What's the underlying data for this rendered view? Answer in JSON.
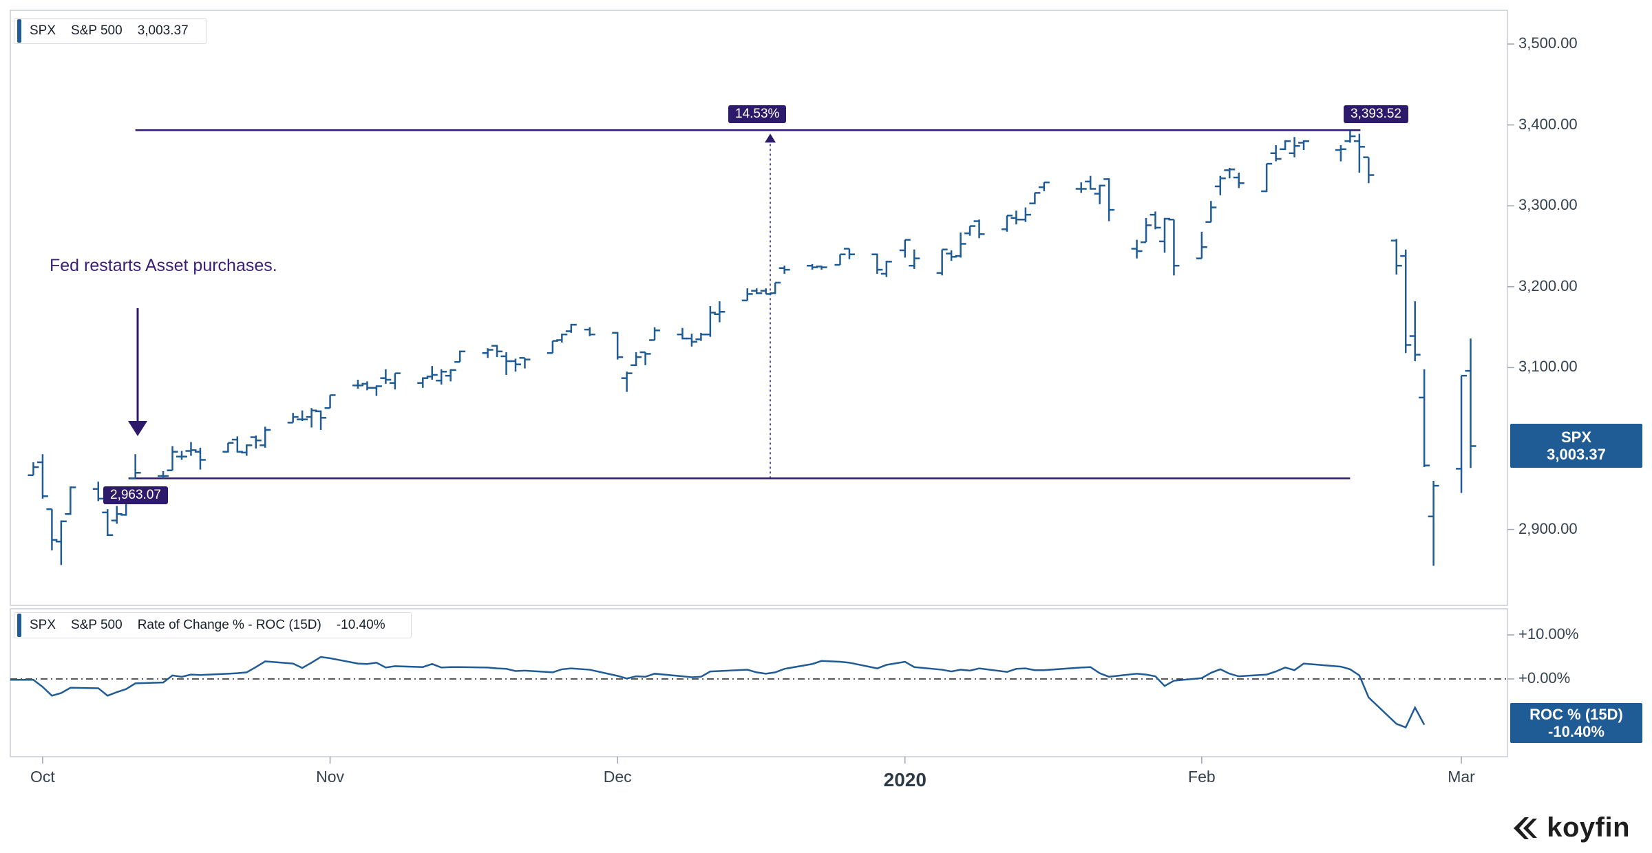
{
  "main_legend": {
    "ticker": "SPX",
    "name": "S&P 500",
    "value": "3,003.37"
  },
  "roc_legend": {
    "ticker": "SPX",
    "name": "S&P 500",
    "indicator": "Rate of Change % - ROC (15D)",
    "value": "-10.40%"
  },
  "annotation": "Fed restarts Asset purchases.",
  "tags": {
    "low_level": "2,963.07",
    "high_level": "3,393.52",
    "change": "14.53%"
  },
  "last_price_badge": {
    "ticker": "SPX",
    "value": "3,003.37"
  },
  "roc_badge": {
    "label": "ROC % (15D)",
    "value": "-10.40%"
  },
  "brand": "koyfin",
  "colors": {
    "bar": "#1f5b94",
    "accent": "#2e1a6b",
    "badge": "#1f5b94"
  },
  "chart_data": [
    {
      "type": "ohlc",
      "series_name": "SPX",
      "ylim": [
        2820,
        3530
      ],
      "y_ticks": [
        "3,500.00",
        "3,400.00",
        "3,300.00",
        "3,200.00",
        "3,100.00",
        "2,900.00"
      ],
      "y_tick_values": [
        3500,
        3400,
        3300,
        3200,
        3100,
        2900
      ],
      "x_ticks": [
        "Oct",
        "Nov",
        "Dec",
        "2020",
        "Feb",
        "Mar"
      ],
      "x_tick_dates": [
        "2019-10-01",
        "2019-11-01",
        "2019-12-02",
        "2020-01-02",
        "2020-02-03",
        "2020-03-02"
      ],
      "levels": {
        "low": 2963.07,
        "high": 3393.52,
        "low_date": "2019-10-11",
        "high_date": "2020-02-19"
      },
      "bars": [
        [
          "2019-09-30",
          2967,
          2983,
          2967,
          2977
        ],
        [
          "2019-10-01",
          2983,
          2993,
          2938,
          2941
        ],
        [
          "2019-10-02",
          2925,
          2925,
          2874,
          2887
        ],
        [
          "2019-10-03",
          2885,
          2911,
          2856,
          2910
        ],
        [
          "2019-10-04",
          2919,
          2953,
          2918,
          2952
        ],
        [
          "2019-10-07",
          2950,
          2959,
          2935,
          2938
        ],
        [
          "2019-10-08",
          2921,
          2925,
          2892,
          2893
        ],
        [
          "2019-10-09",
          2911,
          2929,
          2907,
          2919
        ],
        [
          "2019-10-10",
          2918,
          2948,
          2917,
          2938
        ],
        [
          "2019-10-11",
          2963,
          2993,
          2963,
          2970
        ],
        [
          "2019-10-14",
          2966,
          2972,
          2963,
          2966
        ],
        [
          "2019-10-15",
          2973,
          3003,
          2973,
          2996
        ],
        [
          "2019-10-16",
          2990,
          2997,
          2986,
          2990
        ],
        [
          "2019-10-17",
          2997,
          3008,
          2991,
          2998
        ],
        [
          "2019-10-18",
          2996,
          3001,
          2974,
          2986
        ],
        [
          "2019-10-21",
          2996,
          3007,
          2995,
          3007
        ],
        [
          "2019-10-22",
          3011,
          3015,
          2995,
          2996
        ],
        [
          "2019-10-23",
          2995,
          3005,
          2991,
          3004
        ],
        [
          "2019-10-24",
          3014,
          3016,
          3000,
          3010
        ],
        [
          "2019-10-25",
          3004,
          3027,
          3001,
          3023
        ],
        [
          "2019-10-28",
          3032,
          3044,
          3032,
          3039
        ],
        [
          "2019-10-29",
          3036,
          3047,
          3034,
          3036
        ],
        [
          "2019-10-30",
          3039,
          3050,
          3026,
          3047
        ],
        [
          "2019-10-31",
          3046,
          3047,
          3023,
          3038
        ],
        [
          "2019-11-01",
          3050,
          3066,
          3050,
          3066
        ],
        [
          "2019-11-04",
          3078,
          3085,
          3074,
          3078
        ],
        [
          "2019-11-05",
          3080,
          3083,
          3072,
          3075
        ],
        [
          "2019-11-06",
          3075,
          3078,
          3065,
          3077
        ],
        [
          "2019-11-07",
          3087,
          3098,
          3080,
          3085
        ],
        [
          "2019-11-08",
          3081,
          3093,
          3073,
          3093
        ],
        [
          "2019-11-11",
          3081,
          3088,
          3075,
          3087
        ],
        [
          "2019-11-12",
          3089,
          3102,
          3085,
          3091
        ],
        [
          "2019-11-13",
          3084,
          3098,
          3079,
          3095
        ],
        [
          "2019-11-14",
          3090,
          3098,
          3083,
          3097
        ],
        [
          "2019-11-15",
          3107,
          3121,
          3107,
          3120
        ],
        [
          "2019-11-18",
          3118,
          3124,
          3112,
          3122
        ],
        [
          "2019-11-19",
          3127,
          3128,
          3113,
          3120
        ],
        [
          "2019-11-20",
          3114,
          3119,
          3091,
          3108
        ],
        [
          "2019-11-21",
          3108,
          3111,
          3095,
          3104
        ],
        [
          "2019-11-22",
          3112,
          3112,
          3099,
          3110
        ],
        [
          "2019-11-25",
          3118,
          3133,
          3118,
          3133
        ],
        [
          "2019-11-26",
          3134,
          3142,
          3131,
          3141
        ],
        [
          "2019-11-27",
          3145,
          3154,
          3143,
          3153
        ],
        [
          "2019-11-29",
          3147,
          3150,
          3139,
          3141
        ],
        [
          "2019-12-02",
          3143,
          3144,
          3110,
          3113
        ],
        [
          "2019-12-03",
          3087,
          3095,
          3070,
          3093
        ],
        [
          "2019-12-04",
          3103,
          3119,
          3102,
          3113
        ],
        [
          "2019-12-05",
          3119,
          3119,
          3103,
          3117
        ],
        [
          "2019-12-06",
          3134,
          3150,
          3134,
          3146
        ],
        [
          "2019-12-09",
          3141,
          3149,
          3135,
          3136
        ],
        [
          "2019-12-10",
          3136,
          3142,
          3126,
          3132
        ],
        [
          "2019-12-11",
          3135,
          3143,
          3133,
          3141
        ],
        [
          "2019-12-12",
          3141,
          3176,
          3138,
          3168
        ],
        [
          "2019-12-13",
          3166,
          3182,
          3156,
          3169
        ],
        [
          "2019-12-16",
          3183,
          3198,
          3183,
          3191
        ],
        [
          "2019-12-17",
          3195,
          3198,
          3191,
          3192
        ],
        [
          "2019-12-18",
          3195,
          3198,
          3191,
          3191
        ],
        [
          "2019-12-19",
          3192,
          3205,
          3191,
          3205
        ],
        [
          "2019-12-20",
          3223,
          3226,
          3216,
          3221
        ],
        [
          "2019-12-23",
          3226,
          3228,
          3221,
          3224
        ],
        [
          "2019-12-24",
          3225,
          3226,
          3221,
          3224
        ],
        [
          "2019-12-26",
          3227,
          3240,
          3227,
          3240
        ],
        [
          "2019-12-27",
          3247,
          3247,
          3234,
          3240
        ],
        [
          "2019-12-30",
          3240,
          3241,
          3216,
          3221
        ],
        [
          "2019-12-31",
          3216,
          3232,
          3212,
          3231
        ],
        [
          "2020-01-02",
          3245,
          3258,
          3236,
          3258
        ],
        [
          "2020-01-03",
          3226,
          3246,
          3222,
          3235
        ],
        [
          "2020-01-06",
          3217,
          3246,
          3214,
          3246
        ],
        [
          "2020-01-07",
          3241,
          3245,
          3232,
          3237
        ],
        [
          "2020-01-08",
          3238,
          3267,
          3236,
          3253
        ],
        [
          "2020-01-09",
          3266,
          3275,
          3263,
          3275
        ],
        [
          "2020-01-10",
          3281,
          3283,
          3260,
          3265
        ],
        [
          "2020-01-13",
          3271,
          3288,
          3268,
          3288
        ],
        [
          "2020-01-14",
          3285,
          3294,
          3277,
          3283
        ],
        [
          "2020-01-15",
          3283,
          3298,
          3280,
          3289
        ],
        [
          "2020-01-16",
          3303,
          3316,
          3302,
          3316
        ],
        [
          "2020-01-17",
          3323,
          3329,
          3318,
          3329
        ],
        [
          "2020-01-21",
          3321,
          3329,
          3316,
          3321
        ],
        [
          "2020-01-22",
          3330,
          3337,
          3320,
          3321
        ],
        [
          "2020-01-23",
          3315,
          3326,
          3302,
          3325
        ],
        [
          "2020-01-24",
          3333,
          3334,
          3281,
          3295
        ],
        [
          "2020-01-27",
          3247,
          3258,
          3235,
          3244
        ],
        [
          "2020-01-28",
          3255,
          3285,
          3255,
          3276
        ],
        [
          "2020-01-29",
          3289,
          3293,
          3271,
          3273
        ],
        [
          "2020-01-30",
          3256,
          3285,
          3242,
          3284
        ],
        [
          "2020-01-31",
          3283,
          3283,
          3214,
          3226
        ],
        [
          "2020-02-03",
          3235,
          3268,
          3235,
          3249
        ],
        [
          "2020-02-04",
          3280,
          3306,
          3280,
          3298
        ],
        [
          "2020-02-05",
          3324,
          3337,
          3313,
          3334
        ],
        [
          "2020-02-06",
          3344,
          3347,
          3334,
          3345
        ],
        [
          "2020-02-07",
          3335,
          3341,
          3322,
          3328
        ],
        [
          "2020-02-10",
          3318,
          3352,
          3317,
          3352
        ],
        [
          "2020-02-11",
          3365,
          3375,
          3355,
          3358
        ],
        [
          "2020-02-12",
          3370,
          3381,
          3369,
          3380
        ],
        [
          "2020-02-13",
          3365,
          3385,
          3360,
          3374
        ],
        [
          "2020-02-14",
          3378,
          3381,
          3369,
          3380
        ],
        [
          "2020-02-18",
          3369,
          3375,
          3355,
          3370
        ],
        [
          "2020-02-19",
          3380,
          3393,
          3378,
          3386
        ],
        [
          "2020-02-20",
          3380,
          3389,
          3341,
          3373
        ],
        [
          "2020-02-21",
          3360,
          3360,
          3328,
          3338
        ],
        [
          "2020-02-24",
          3257,
          3259,
          3215,
          3226
        ],
        [
          "2020-02-25",
          3238,
          3246,
          3118,
          3128
        ],
        [
          "2020-02-26",
          3139,
          3182,
          3108,
          3116
        ],
        [
          "2020-02-27",
          3063,
          3098,
          2977,
          2979
        ],
        [
          "2020-02-28",
          2916,
          2960,
          2855,
          2954
        ],
        [
          "2020-03-02",
          2975,
          3090,
          2945,
          3090
        ],
        [
          "2020-03-03",
          3096,
          3136,
          2976,
          3003
        ]
      ]
    },
    {
      "type": "line",
      "series_name": "ROC % (15D)",
      "ylim": [
        -18,
        12
      ],
      "y_ticks": [
        "+10.00%",
        "+0.00%"
      ],
      "y_tick_values": [
        10,
        0
      ],
      "reference_line": 0,
      "values": [
        -0.2,
        -1.8,
        -3.8,
        -3.2,
        -2.0,
        -2.1,
        -3.8,
        -3.0,
        -2.3,
        -1.0,
        -0.8,
        0.8,
        0.5,
        1.0,
        0.9,
        1.2,
        1.3,
        1.5,
        2.7,
        4.0,
        3.5,
        2.5,
        3.7,
        5.0,
        4.7,
        3.5,
        3.4,
        3.7,
        2.6,
        2.9,
        2.7,
        3.4,
        2.6,
        2.7,
        2.7,
        2.6,
        2.4,
        2.3,
        1.8,
        1.9,
        1.5,
        2.2,
        2.4,
        2.1,
        0.7,
        0.1,
        0.6,
        0.5,
        1.2,
        0.6,
        0.4,
        0.5,
        1.7,
        1.8,
        2.1,
        1.5,
        1.2,
        1.5,
        2.3,
        3.4,
        4.1,
        3.9,
        3.7,
        2.4,
        3.2,
        3.9,
        2.7,
        2.1,
        1.7,
        2.1,
        1.9,
        2.4,
        1.6,
        2.3,
        2.4,
        2.0,
        2.0,
        2.6,
        2.7,
        1.3,
        0.5,
        1.2,
        1.0,
        0.6,
        -1.6,
        -0.4,
        0.2,
        1.4,
        2.2,
        1.2,
        0.6,
        1.0,
        1.7,
        2.6,
        2.0,
        3.5,
        2.8,
        2.2,
        0.8,
        -4.2,
        -10.2,
        -11.0,
        -6.5,
        -10.4
      ]
    }
  ]
}
